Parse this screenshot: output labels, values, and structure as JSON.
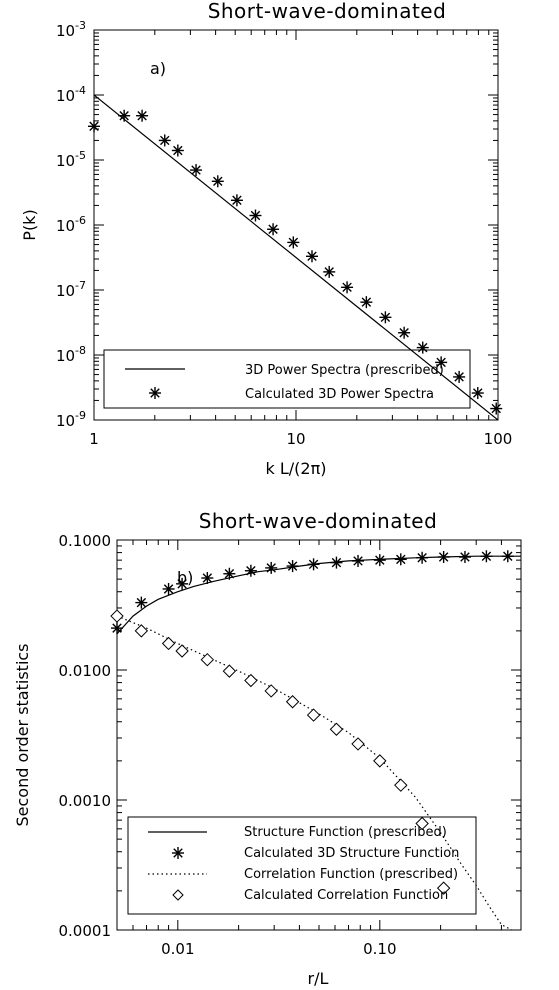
{
  "chart_data": [
    {
      "type": "scatter",
      "title": "Short-wave-dominated",
      "panel_label": "a)",
      "xlabel": "k L/(2π)",
      "ylabel": "P(k)",
      "xscale": "log",
      "yscale": "log",
      "xlim": [
        1,
        100
      ],
      "ylim": [
        1e-09,
        0.001
      ],
      "x_ticks": [
        {
          "value": 1,
          "label": "1"
        },
        {
          "value": 10,
          "label": "10"
        },
        {
          "value": 100,
          "label": "100"
        }
      ],
      "y_ticks": [
        {
          "value": 1e-09,
          "base": "10",
          "exp": "-9"
        },
        {
          "value": 1e-08,
          "base": "10",
          "exp": "-8"
        },
        {
          "value": 1e-07,
          "base": "10",
          "exp": "-7"
        },
        {
          "value": 1e-06,
          "base": "10",
          "exp": "-6"
        },
        {
          "value": 1e-05,
          "base": "10",
          "exp": "-5"
        },
        {
          "value": 0.0001,
          "base": "10",
          "exp": "-4"
        },
        {
          "value": 0.001,
          "base": "10",
          "exp": "-3"
        }
      ],
      "legend_position": "bottom",
      "series": [
        {
          "name": "3D Power Spectra (prescribed)",
          "style": "solid-line",
          "x": [
            1,
            100
          ],
          "y": [
            0.0001,
            1e-09
          ]
        },
        {
          "name": "Calculated 3D Power Spectra",
          "style": "asterisk",
          "x": [
            1.0,
            1.41,
            1.73,
            2.24,
            2.6,
            3.2,
            4.1,
            5.1,
            6.3,
            7.7,
            9.7,
            12.0,
            14.6,
            17.9,
            22.3,
            27.7,
            34.3,
            42.4,
            52.3,
            64.2,
            79.4,
            98.0
          ],
          "y": [
            3.3e-05,
            4.8e-05,
            4.8e-05,
            2e-05,
            1.4e-05,
            7e-06,
            4.7e-06,
            2.4e-06,
            1.4e-06,
            8.6e-07,
            5.4e-07,
            3.3e-07,
            1.9e-07,
            1.1e-07,
            6.5e-08,
            3.8e-08,
            2.2e-08,
            1.3e-08,
            7.7e-09,
            4.6e-09,
            2.6e-09,
            1.5e-09
          ]
        }
      ]
    },
    {
      "type": "scatter",
      "title": "Short-wave-dominated",
      "panel_label": "b)",
      "xlabel": "r/L",
      "ylabel": "Second order statistics",
      "xscale": "log",
      "yscale": "log",
      "xlim": [
        0.005,
        0.5
      ],
      "ylim": [
        0.0001,
        0.1
      ],
      "x_ticks": [
        {
          "value": 0.01,
          "label": "0.01"
        },
        {
          "value": 0.1,
          "label": "0.10"
        }
      ],
      "y_ticks": [
        {
          "value": 0.0001,
          "label": "0.0001"
        },
        {
          "value": 0.001,
          "label": "0.0010"
        },
        {
          "value": 0.01,
          "label": "0.0100"
        },
        {
          "value": 0.1,
          "label": "0.1000"
        }
      ],
      "legend_position": "bottom",
      "series": [
        {
          "name": "Structure Function (prescribed)",
          "style": "solid-line",
          "x": [
            0.005,
            0.006,
            0.007,
            0.008,
            0.01,
            0.012,
            0.015,
            0.02,
            0.025,
            0.03,
            0.04,
            0.05,
            0.07,
            0.1,
            0.15,
            0.2,
            0.3,
            0.5
          ],
          "y": [
            0.019,
            0.026,
            0.031,
            0.035,
            0.04,
            0.044,
            0.048,
            0.053,
            0.057,
            0.059,
            0.063,
            0.066,
            0.069,
            0.071,
            0.073,
            0.074,
            0.075,
            0.075
          ]
        },
        {
          "name": "Calculated 3D Structure Function",
          "style": "asterisk",
          "x": [
            0.005,
            0.0066,
            0.009,
            0.0105,
            0.014,
            0.018,
            0.023,
            0.029,
            0.037,
            0.047,
            0.061,
            0.078,
            0.1,
            0.127,
            0.162,
            0.207,
            0.264,
            0.337,
            0.43
          ],
          "y": [
            0.021,
            0.033,
            0.042,
            0.046,
            0.051,
            0.055,
            0.058,
            0.061,
            0.063,
            0.065,
            0.067,
            0.069,
            0.07,
            0.071,
            0.073,
            0.074,
            0.074,
            0.075,
            0.075
          ]
        },
        {
          "name": "Correlation Function (prescribed)",
          "style": "dotted-line",
          "x": [
            0.005,
            0.007,
            0.01,
            0.015,
            0.02,
            0.03,
            0.05,
            0.07,
            0.1,
            0.15,
            0.2,
            0.25,
            0.3,
            0.35,
            0.4,
            0.45
          ],
          "y": [
            0.026,
            0.021,
            0.016,
            0.012,
            0.0098,
            0.0072,
            0.0046,
            0.0033,
            0.0021,
            0.00105,
            0.00056,
            0.00033,
            0.00022,
            0.00015,
            0.00011,
            0.0001
          ]
        },
        {
          "name": "Calculated Correlation Function",
          "style": "diamond",
          "x": [
            0.005,
            0.0066,
            0.009,
            0.0105,
            0.014,
            0.018,
            0.023,
            0.029,
            0.037,
            0.047,
            0.061,
            0.078,
            0.1,
            0.127,
            0.162,
            0.207
          ],
          "y": [
            0.026,
            0.02,
            0.016,
            0.014,
            0.012,
            0.0098,
            0.0083,
            0.0069,
            0.0057,
            0.0045,
            0.0035,
            0.0027,
            0.002,
            0.0013,
            0.00066,
            0.00021
          ]
        }
      ]
    }
  ]
}
